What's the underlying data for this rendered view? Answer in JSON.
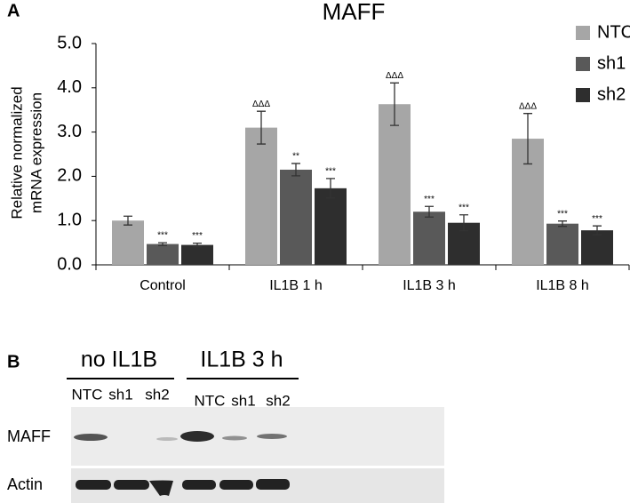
{
  "chart_data": {
    "type": "bar",
    "panel_label": "A",
    "title": "MAFF",
    "ylabel": [
      "Relative normalized",
      "mRNA expression"
    ],
    "categories": [
      "Control",
      "IL1B 1 h",
      "IL1B 3 h",
      "IL1B 8 h"
    ],
    "series": [
      {
        "name": "NTC",
        "color": "#a6a6a6",
        "values": [
          1.0,
          3.1,
          3.63,
          2.85
        ],
        "errors": [
          0.1,
          0.37,
          0.48,
          0.57
        ],
        "labels": [
          null,
          "ΔΔΔ",
          "ΔΔΔ",
          "ΔΔΔ"
        ]
      },
      {
        "name": "sh1",
        "color": "#595959",
        "values": [
          0.47,
          2.15,
          1.2,
          0.93
        ],
        "errors": [
          0.03,
          0.14,
          0.12,
          0.06
        ],
        "labels": [
          "***",
          "**",
          "***",
          "***"
        ]
      },
      {
        "name": "sh2",
        "color": "#2e2e2e",
        "values": [
          0.45,
          1.73,
          0.95,
          0.78
        ],
        "errors": [
          0.04,
          0.22,
          0.18,
          0.1
        ],
        "labels": [
          "***",
          "***",
          "***",
          "***"
        ]
      }
    ],
    "ylim": [
      0,
      5
    ],
    "yticks": [
      {
        "value": 0,
        "label": "0.0"
      },
      {
        "value": 1,
        "label": "1.0"
      },
      {
        "value": 2,
        "label": "2.0"
      },
      {
        "value": 3,
        "label": "3.0"
      },
      {
        "value": 4,
        "label": "4.0"
      },
      {
        "value": 5,
        "label": "5.0"
      }
    ],
    "grid": false,
    "legend": "top-right"
  },
  "blot": {
    "panel_label": "B",
    "groups": [
      {
        "name": "no IL1B",
        "lanes": [
          "NTC",
          "sh1",
          "sh2"
        ]
      },
      {
        "name": "IL1B 3 h",
        "lanes": [
          "NTC",
          "sh1",
          "sh2"
        ]
      }
    ],
    "rows": [
      "MAFF",
      "Actin"
    ]
  }
}
